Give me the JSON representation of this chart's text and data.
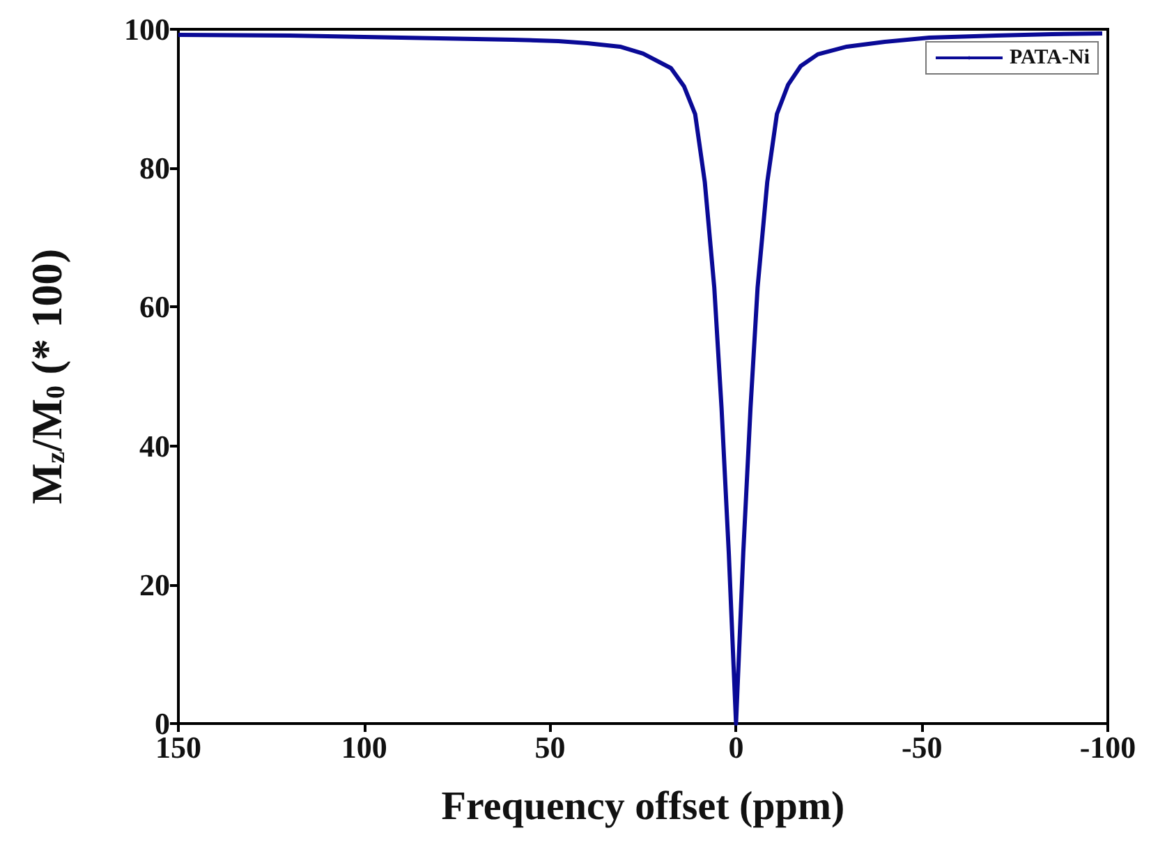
{
  "chart_data": {
    "type": "line",
    "xlabel": "Frequency offset (ppm)",
    "ylabel": "M$_{z}$/M$_{0}$ (* 100)",
    "xlim": [
      150,
      -100
    ],
    "xticks": [
      150,
      100,
      50,
      0,
      -50,
      -100
    ],
    "ylim": [
      0,
      100
    ],
    "yticks": [
      0,
      20,
      40,
      60,
      80,
      100
    ],
    "grid": false,
    "legend": "top right",
    "marker": "none",
    "line_style": "solid",
    "series": [
      {
        "name": "PATA-Ni",
        "color": "#0a0a96",
        "x": [
          150,
          120,
          100,
          80,
          60,
          47.8,
          40,
          31.2,
          25,
          17.5,
          14,
          11,
          8.4,
          5.85,
          3.9,
          1.95,
          0,
          -1.95,
          -3.9,
          -5.8,
          -8.4,
          -11,
          -14,
          -17.4,
          -22,
          -29.8,
          -40,
          -52,
          -70,
          -85,
          -98.5
        ],
        "values": [
          99.2,
          99.1,
          98.9,
          98.7,
          98.5,
          98.3,
          98.0,
          97.5,
          96.5,
          94.4,
          91.8,
          87.8,
          78,
          62.8,
          45.5,
          24.6,
          0,
          24.6,
          45.5,
          62.8,
          78,
          87.8,
          92,
          94.7,
          96.4,
          97.5,
          98.2,
          98.8,
          99.1,
          99.3,
          99.4
        ]
      }
    ]
  }
}
